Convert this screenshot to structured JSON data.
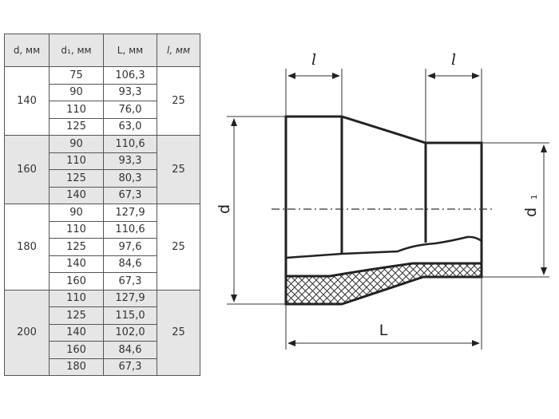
{
  "table": {
    "headers": [
      "d, мм",
      "d₁, мм",
      "L, мм",
      "l, мм"
    ],
    "groups": [
      {
        "d": "140",
        "l": "25",
        "shaded": false,
        "rows": [
          [
            "75",
            "106,3"
          ],
          [
            "90",
            "93,3"
          ],
          [
            "110",
            "76,0"
          ],
          [
            "125",
            "63,0"
          ]
        ]
      },
      {
        "d": "160",
        "l": "25",
        "shaded": true,
        "rows": [
          [
            "90",
            "110,6"
          ],
          [
            "110",
            "93,3"
          ],
          [
            "125",
            "80,3"
          ],
          [
            "140",
            "67,3"
          ]
        ]
      },
      {
        "d": "180",
        "l": "25",
        "shaded": false,
        "rows": [
          [
            "90",
            "127,9"
          ],
          [
            "110",
            "110,6"
          ],
          [
            "125",
            "97,6"
          ],
          [
            "140",
            "84,6"
          ],
          [
            "160",
            "67,3"
          ]
        ]
      },
      {
        "d": "200",
        "l": "25",
        "shaded": true,
        "rows": [
          [
            "110",
            "127,9"
          ],
          [
            "125",
            "115,0"
          ],
          [
            "140",
            "102,0"
          ],
          [
            "160",
            "84,6"
          ],
          [
            "180",
            "67,3"
          ]
        ]
      }
    ]
  },
  "drawing": {
    "label_l_left": "l",
    "label_l_right": "l",
    "label_d": "d",
    "label_d1": "d",
    "label_d1_sub": "1",
    "label_L": "L"
  }
}
